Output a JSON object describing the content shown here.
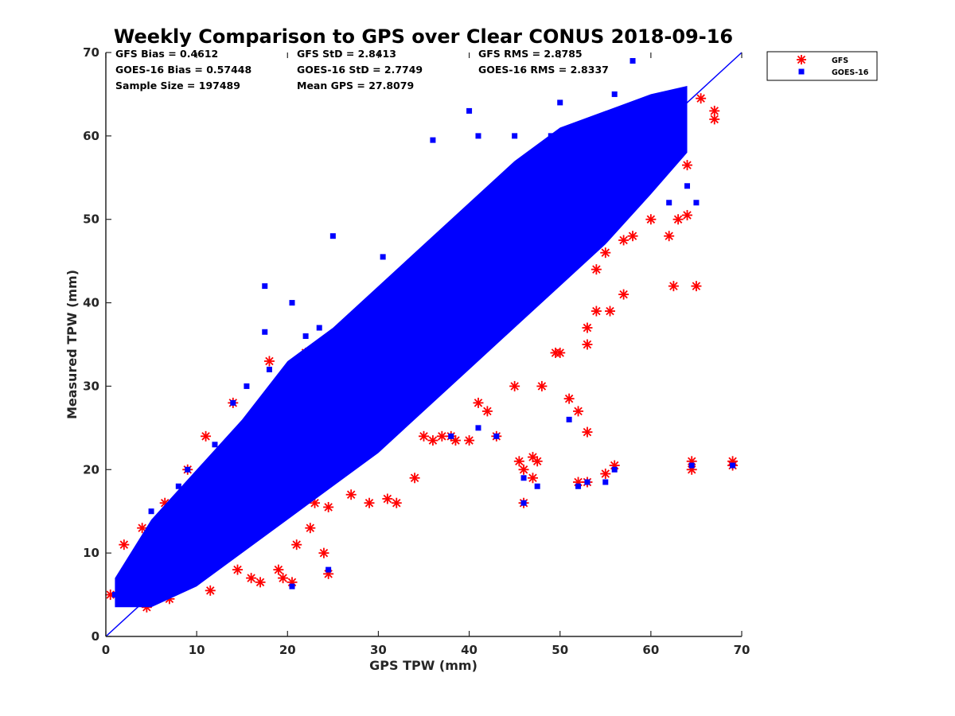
{
  "chart_data": {
    "type": "scatter",
    "title": "Weekly Comparison to GPS over Clear CONUS 2018-09-16",
    "xlabel": "GPS TPW (mm)",
    "ylabel": "Measured TPW (mm)",
    "xlim": [
      0,
      70
    ],
    "ylim": [
      0,
      70
    ],
    "xticks": [
      "0",
      "10",
      "20",
      "30",
      "40",
      "50",
      "60",
      "70"
    ],
    "yticks": [
      "0",
      "10",
      "20",
      "30",
      "40",
      "50",
      "60",
      "70"
    ],
    "grid": false,
    "legend_position": "top-right, outside plot area",
    "reference_line": {
      "type": "one-to-one",
      "from": [
        0,
        0
      ],
      "to": [
        70,
        70
      ],
      "color": "#0000ff"
    },
    "stats": [
      "GFS Bias = 0.4612",
      "GFS StD = 2.8413",
      "GFS RMS = 2.8785",
      "GOES-16 Bias = 0.57448",
      "GOES-16 StD = 2.7749",
      "GOES-16 RMS = 2.8337",
      "Sample Size = 197489",
      "Mean GPS = 27.8079"
    ],
    "series": [
      {
        "name": "GFS",
        "marker": "asterisk",
        "color": "#ff0000",
        "points": [
          [
            0.5,
            5
          ],
          [
            2,
            11
          ],
          [
            2.5,
            8
          ],
          [
            4,
            13
          ],
          [
            4.5,
            3.5
          ],
          [
            6.5,
            16
          ],
          [
            7,
            4.5
          ],
          [
            9,
            20
          ],
          [
            11,
            24
          ],
          [
            11.5,
            5.5
          ],
          [
            14,
            28
          ],
          [
            14.5,
            8
          ],
          [
            16,
            7
          ],
          [
            17,
            6.5
          ],
          [
            18,
            33
          ],
          [
            18,
            15
          ],
          [
            19,
            8
          ],
          [
            19.5,
            7
          ],
          [
            20.5,
            6.5
          ],
          [
            21,
            11
          ],
          [
            22,
            34
          ],
          [
            22.5,
            13
          ],
          [
            23,
            16
          ],
          [
            24,
            10
          ],
          [
            24.5,
            15.5
          ],
          [
            24.5,
            7.5
          ],
          [
            27,
            17
          ],
          [
            30,
            41
          ],
          [
            29,
            16
          ],
          [
            31,
            16.5
          ],
          [
            32,
            16
          ],
          [
            34,
            19
          ],
          [
            35,
            45.5
          ],
          [
            35,
            24
          ],
          [
            36,
            23.5
          ],
          [
            37,
            24
          ],
          [
            38,
            24
          ],
          [
            38.5,
            23.5
          ],
          [
            40,
            23.5
          ],
          [
            41,
            28
          ],
          [
            42,
            27
          ],
          [
            43,
            24
          ],
          [
            45,
            30
          ],
          [
            45.5,
            21
          ],
          [
            46,
            20
          ],
          [
            46,
            16
          ],
          [
            47,
            21.5
          ],
          [
            47,
            19
          ],
          [
            47.5,
            21
          ],
          [
            48,
            30
          ],
          [
            49.5,
            34
          ],
          [
            50,
            34
          ],
          [
            51,
            28.5
          ],
          [
            52,
            18.5
          ],
          [
            52,
            27
          ],
          [
            53,
            37
          ],
          [
            53,
            35
          ],
          [
            53,
            24.5
          ],
          [
            53,
            18.5
          ],
          [
            54,
            39
          ],
          [
            54,
            44
          ],
          [
            55,
            46
          ],
          [
            55,
            19.5
          ],
          [
            55.5,
            39
          ],
          [
            56,
            20.5
          ],
          [
            57,
            41
          ],
          [
            57,
            47.5
          ],
          [
            58,
            48
          ],
          [
            60,
            50
          ],
          [
            62,
            48
          ],
          [
            62.5,
            42
          ],
          [
            63,
            50
          ],
          [
            64,
            50.5
          ],
          [
            64,
            56.5
          ],
          [
            64.5,
            21
          ],
          [
            64.5,
            20
          ],
          [
            65,
            42
          ],
          [
            65.5,
            64.5
          ],
          [
            67,
            63
          ],
          [
            67,
            62
          ],
          [
            69,
            21
          ],
          [
            69,
            20.5
          ]
        ]
      },
      {
        "name": "GOES-16",
        "marker": "square",
        "color": "#0000ff",
        "points": [
          [
            1,
            5
          ],
          [
            3,
            7
          ],
          [
            5,
            10
          ],
          [
            7,
            12
          ],
          [
            9,
            14
          ],
          [
            11,
            16
          ],
          [
            13,
            18
          ],
          [
            15,
            20
          ],
          [
            17,
            22
          ],
          [
            19,
            24
          ],
          [
            21,
            26
          ],
          [
            23,
            28
          ],
          [
            25,
            30
          ],
          [
            27,
            33
          ],
          [
            29,
            35
          ],
          [
            31,
            37
          ],
          [
            33,
            39
          ],
          [
            35,
            41
          ],
          [
            37,
            43
          ],
          [
            39,
            45
          ],
          [
            41,
            47
          ],
          [
            43,
            49
          ],
          [
            45,
            51
          ],
          [
            47,
            53
          ],
          [
            49,
            55
          ],
          [
            51,
            57
          ],
          [
            53,
            59
          ],
          [
            55,
            60
          ],
          [
            57,
            61
          ],
          [
            59,
            62
          ],
          [
            61,
            62
          ],
          [
            63,
            64
          ],
          [
            2,
            7.5
          ],
          [
            6,
            9
          ],
          [
            10,
            14
          ],
          [
            12,
            13
          ],
          [
            14,
            19
          ],
          [
            16,
            18
          ],
          [
            18,
            21
          ],
          [
            20,
            22
          ],
          [
            22,
            24
          ],
          [
            24,
            26
          ],
          [
            26,
            28
          ],
          [
            28,
            30
          ],
          [
            30,
            32
          ],
          [
            32,
            34
          ],
          [
            34,
            36
          ],
          [
            36,
            38
          ],
          [
            38,
            40
          ],
          [
            40,
            42
          ],
          [
            42,
            44
          ],
          [
            44,
            46
          ],
          [
            46,
            48
          ],
          [
            48,
            50
          ],
          [
            50,
            52
          ],
          [
            52,
            54
          ],
          [
            54,
            56
          ],
          [
            56,
            58
          ],
          [
            58,
            59
          ],
          [
            60,
            60
          ],
          [
            9,
            20
          ],
          [
            15.5,
            30
          ],
          [
            17.5,
            42
          ],
          [
            17.5,
            36.5
          ],
          [
            20.5,
            40
          ],
          [
            22,
            34
          ],
          [
            23.5,
            37
          ],
          [
            25,
            48
          ],
          [
            30.5,
            45.5
          ],
          [
            32,
            27
          ],
          [
            36,
            59.5
          ],
          [
            40,
            63
          ],
          [
            41,
            60
          ],
          [
            45,
            60
          ],
          [
            49,
            60
          ],
          [
            50,
            64
          ],
          [
            52,
            58
          ],
          [
            56,
            65
          ],
          [
            58,
            69
          ],
          [
            60,
            57
          ],
          [
            62,
            52
          ],
          [
            64,
            54
          ],
          [
            65,
            52
          ],
          [
            46,
            19
          ],
          [
            46,
            16
          ],
          [
            47.5,
            18
          ],
          [
            51,
            26
          ],
          [
            52,
            18
          ],
          [
            53,
            18.5
          ],
          [
            55,
            18.5
          ],
          [
            56,
            20
          ],
          [
            64.5,
            20.5
          ],
          [
            69,
            20.5
          ],
          [
            24.5,
            8
          ],
          [
            20.5,
            6
          ],
          [
            38,
            24
          ],
          [
            43,
            24
          ],
          [
            41,
            25
          ],
          [
            4,
            4
          ],
          [
            8,
            6
          ],
          [
            12,
            9
          ],
          [
            16,
            15
          ],
          [
            19,
            16
          ],
          [
            23,
            18
          ],
          [
            27,
            21
          ],
          [
            31,
            25
          ],
          [
            35,
            29
          ],
          [
            39,
            33
          ],
          [
            43,
            37
          ],
          [
            47,
            41
          ],
          [
            51,
            45
          ],
          [
            55,
            48
          ],
          [
            57,
            55
          ],
          [
            5,
            15
          ],
          [
            8,
            18
          ],
          [
            12,
            23
          ],
          [
            14,
            28
          ],
          [
            18,
            32
          ],
          [
            22,
            36
          ]
        ]
      }
    ]
  }
}
